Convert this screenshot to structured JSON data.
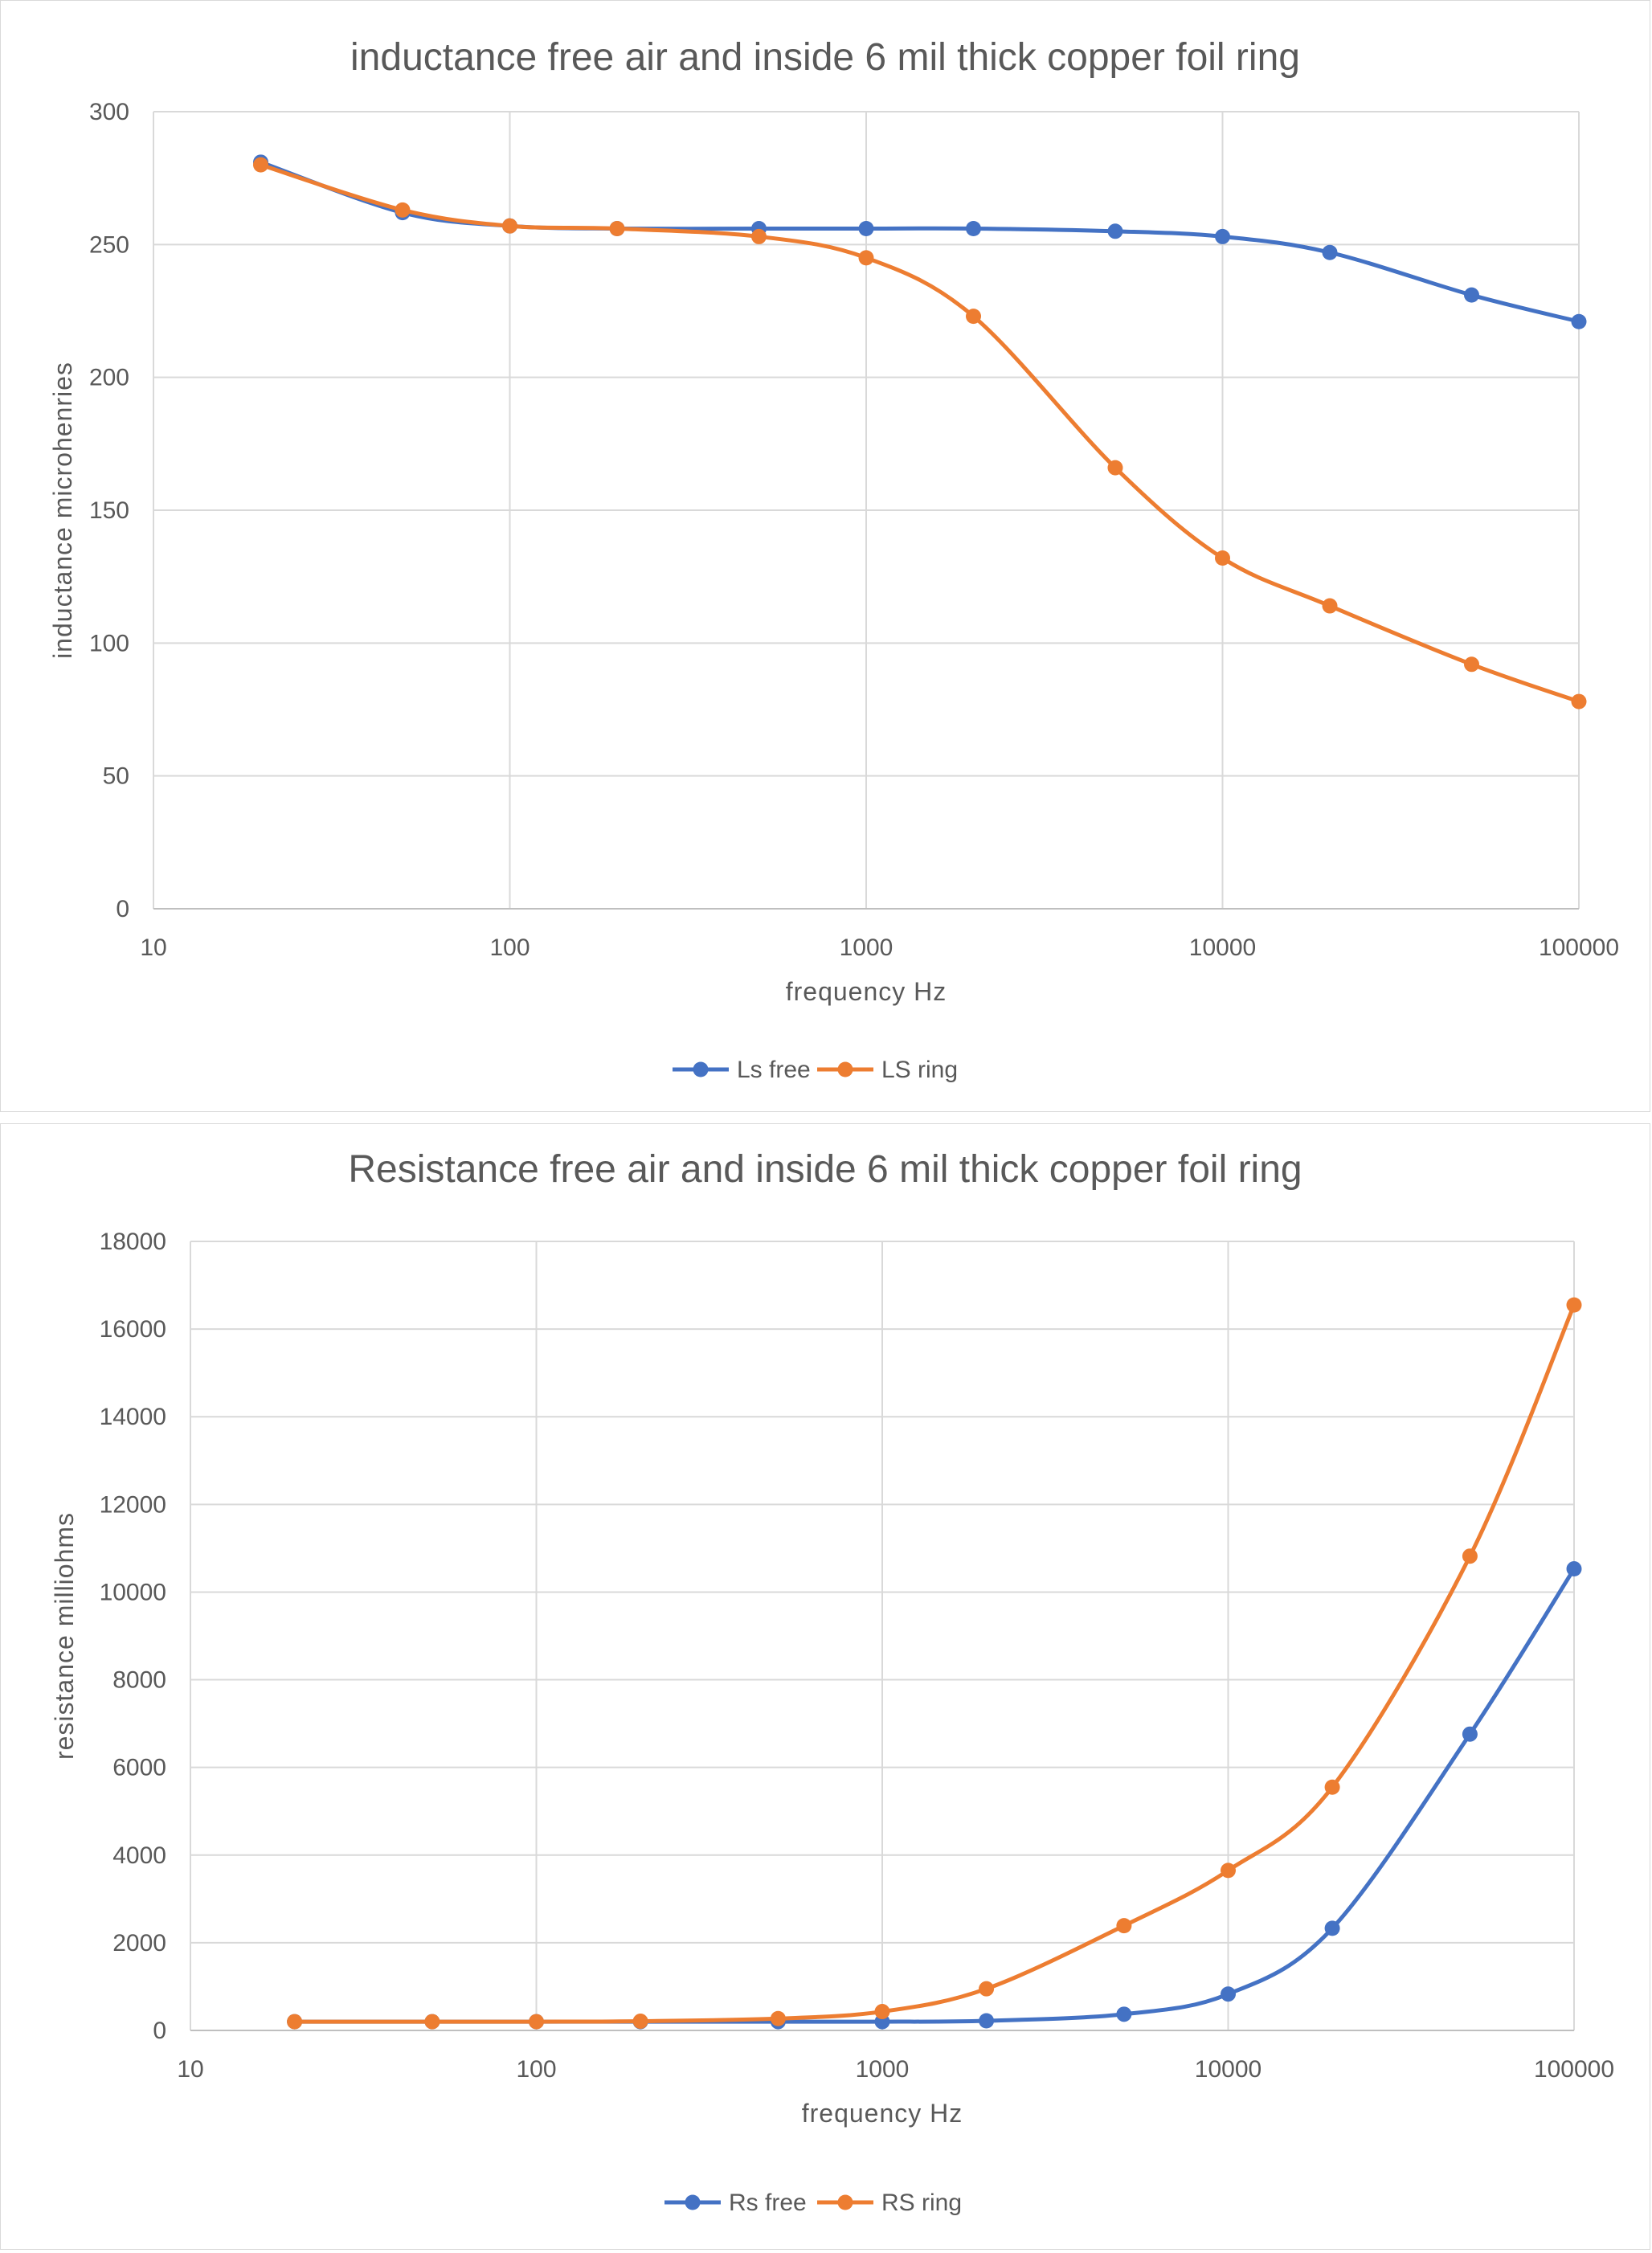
{
  "chart_data": [
    {
      "type": "line",
      "title": "inductance free air and inside 6 mil thick copper foil ring",
      "xlabel": "frequency Hz",
      "ylabel": "inductance microhenries",
      "x_scale": "log",
      "xlim": [
        10,
        100000
      ],
      "ylim": [
        0,
        300
      ],
      "x_ticks": [
        "10",
        "100",
        "1000",
        "10000",
        "100000"
      ],
      "y_ticks": [
        "0",
        "50",
        "100",
        "150",
        "200",
        "250",
        "300"
      ],
      "grid": true,
      "legend_position": "bottom",
      "series": [
        {
          "name": "Ls free",
          "color": "#4472c4",
          "x": [
            20,
            50,
            100,
            200,
            500,
            1000,
            2000,
            5000,
            10000,
            20000,
            50000,
            100000
          ],
          "y": [
            281,
            262,
            257,
            256,
            256,
            256,
            256,
            255,
            253,
            247,
            231,
            221
          ]
        },
        {
          "name": "LS ring",
          "color": "#ed7d31",
          "x": [
            20,
            50,
            100,
            200,
            500,
            1000,
            2000,
            5000,
            10000,
            20000,
            50000,
            100000
          ],
          "y": [
            280,
            263,
            257,
            256,
            253,
            245,
            223,
            166,
            132,
            114,
            92,
            78
          ]
        }
      ]
    },
    {
      "type": "line",
      "title": "Resistance free air and inside 6 mil thick copper foil ring",
      "xlabel": "frequency Hz",
      "ylabel": "resistance milliohms",
      "x_scale": "log",
      "xlim": [
        10,
        100000
      ],
      "ylim": [
        0,
        18000
      ],
      "x_ticks": [
        "10",
        "100",
        "1000",
        "10000",
        "100000"
      ],
      "y_ticks": [
        "0",
        "2000",
        "4000",
        "6000",
        "8000",
        "10000",
        "12000",
        "14000",
        "16000",
        "18000"
      ],
      "grid": true,
      "legend_position": "bottom",
      "series": [
        {
          "name": "Rs free",
          "color": "#4472c4",
          "x": [
            20,
            50,
            100,
            200,
            500,
            1000,
            2000,
            5000,
            10000,
            20000,
            50000,
            100000
          ],
          "y": [
            200,
            200,
            200,
            200,
            200,
            200,
            220,
            370,
            830,
            2330,
            6760,
            10530
          ]
        },
        {
          "name": "RS ring",
          "color": "#ed7d31",
          "x": [
            20,
            50,
            100,
            200,
            500,
            1000,
            2000,
            5000,
            10000,
            20000,
            50000,
            100000
          ],
          "y": [
            200,
            200,
            200,
            210,
            270,
            430,
            950,
            2390,
            3650,
            5550,
            10820,
            16550
          ]
        }
      ]
    }
  ]
}
